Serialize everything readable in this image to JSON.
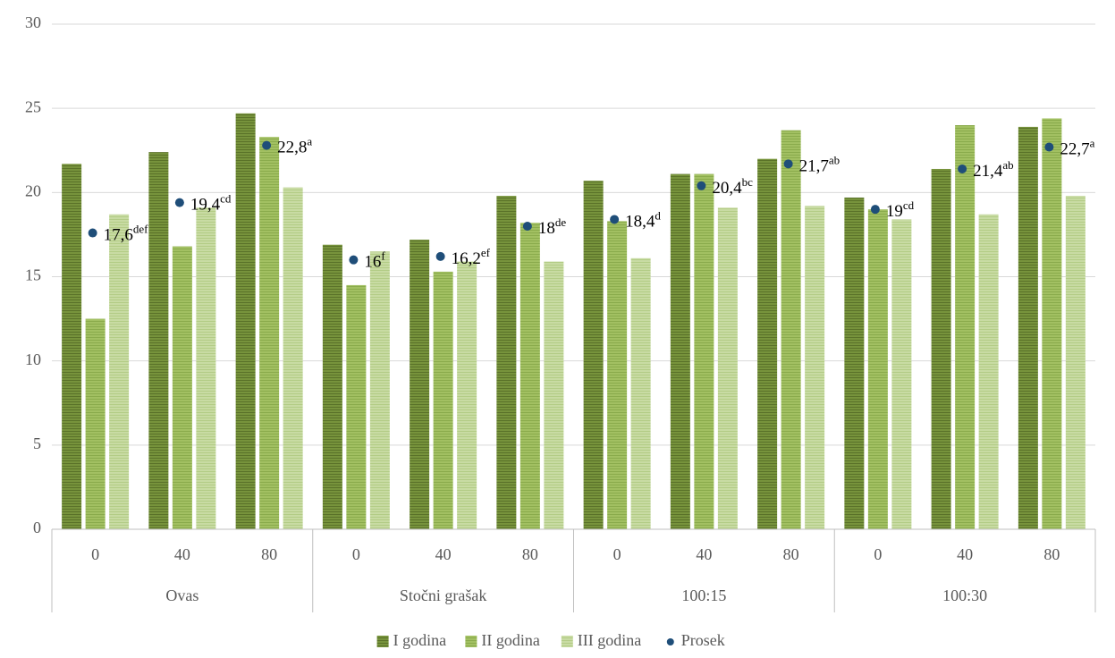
{
  "chart_data": {
    "type": "bar",
    "groups": [
      "Ovas",
      "Stočni grašak",
      "100:15",
      "100:30"
    ],
    "categories": [
      "0",
      "40",
      "80",
      "0",
      "40",
      "80",
      "0",
      "40",
      "80",
      "0",
      "40",
      "80"
    ],
    "series": [
      {
        "name": "I godina",
        "color": "#77933c",
        "values": [
          21.7,
          22.4,
          24.7,
          16.9,
          17.2,
          19.8,
          20.7,
          21.1,
          22.0,
          19.7,
          21.4,
          23.9
        ]
      },
      {
        "name": "II godina",
        "color": "#9bbb59",
        "values": [
          12.5,
          16.8,
          23.3,
          14.5,
          15.3,
          18.2,
          18.3,
          21.1,
          23.7,
          19.0,
          24.0,
          24.4
        ]
      },
      {
        "name": "III godina",
        "color": "#c3d69b",
        "values": [
          18.7,
          19.1,
          20.3,
          16.5,
          15.9,
          15.9,
          16.1,
          19.1,
          19.2,
          18.4,
          18.7,
          19.8
        ]
      },
      {
        "name": "Prosek",
        "type": "scatter",
        "color": "#1f4e79",
        "values": [
          17.6,
          19.4,
          22.8,
          16,
          16.2,
          18,
          18.4,
          20.4,
          21.7,
          19,
          21.4,
          22.7
        ],
        "value_labels": [
          "17,6",
          "19,4",
          "22,8",
          "16",
          "16,2",
          "18",
          "18,4",
          "20,4",
          "21,7",
          "19",
          "21,4",
          "22,7"
        ],
        "letters": [
          "def",
          "cd",
          "a",
          "f",
          "ef",
          "de",
          "d",
          "bc",
          "ab",
          "cd",
          "ab",
          "a"
        ]
      }
    ],
    "ylim": [
      0,
      30
    ],
    "yticks": [
      0,
      5,
      10,
      15,
      20,
      25,
      30
    ],
    "grid": true,
    "legend": "bottom"
  }
}
